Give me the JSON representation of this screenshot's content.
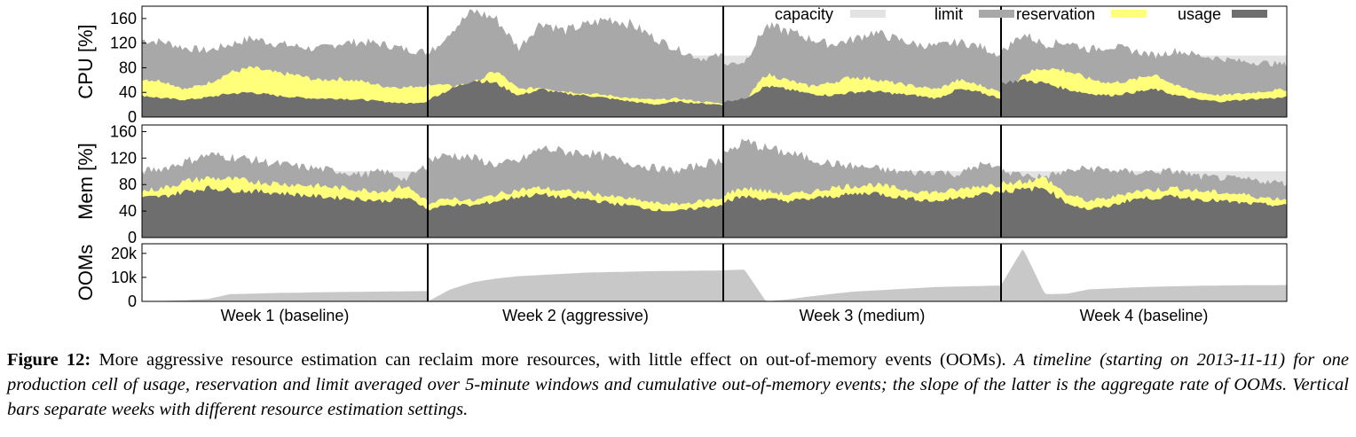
{
  "chart_data": [
    {
      "type": "area",
      "ylabel": "CPU [%]",
      "yticks": [
        0,
        40,
        80,
        120,
        160
      ],
      "ylim": [
        0,
        180
      ],
      "legend": {
        "placement": "top",
        "entries": [
          {
            "name": "capacity",
            "color": "#e3e3e3"
          },
          {
            "name": "limit",
            "color": "#a8a8a8"
          },
          {
            "name": "reservation",
            "color": "#ffff7a"
          },
          {
            "name": "usage",
            "color": "#6e6e6e"
          }
        ]
      },
      "series": [
        {
          "name": "capacity",
          "values": [
            100,
            100,
            100,
            100,
            100,
            100,
            100,
            100,
            100,
            100,
            100,
            100,
            100,
            100,
            100,
            100,
            100,
            100,
            100,
            100,
            100,
            100,
            100,
            100,
            100,
            100,
            100,
            100,
            100,
            100,
            100,
            100,
            100,
            100,
            100,
            100,
            100,
            100,
            100,
            100,
            100,
            100,
            100,
            100,
            100,
            100,
            100,
            100,
            100,
            100,
            100,
            100,
            100,
            100,
            100,
            100
          ]
        },
        {
          "name": "limit",
          "values": [
            125,
            122,
            112,
            108,
            118,
            128,
            120,
            115,
            110,
            120,
            122,
            118,
            110,
            105,
            100,
            140,
            172,
            160,
            112,
            155,
            140,
            150,
            160,
            150,
            128,
            110,
            95,
            100,
            85,
            90,
            148,
            140,
            128,
            118,
            125,
            138,
            128,
            118,
            115,
            122,
            115,
            100,
            105,
            135,
            118,
            122,
            110,
            115,
            108,
            100,
            108,
            100,
            95,
            90,
            88,
            85
          ]
        },
        {
          "name": "reservation",
          "values": [
            62,
            58,
            45,
            55,
            72,
            80,
            72,
            68,
            60,
            62,
            58,
            50,
            48,
            52,
            55,
            50,
            55,
            75,
            45,
            48,
            42,
            38,
            35,
            30,
            28,
            30,
            25,
            22,
            20,
            25,
            70,
            60,
            50,
            55,
            65,
            62,
            55,
            50,
            45,
            60,
            52,
            40,
            30,
            70,
            80,
            75,
            62,
            55,
            60,
            70,
            50,
            40,
            35,
            38,
            42,
            45
          ]
        },
        {
          "name": "usage",
          "values": [
            35,
            30,
            28,
            32,
            38,
            40,
            35,
            32,
            30,
            30,
            28,
            25,
            22,
            25,
            28,
            45,
            60,
            55,
            35,
            45,
            38,
            35,
            30,
            25,
            20,
            25,
            22,
            20,
            25,
            30,
            50,
            45,
            38,
            35,
            40,
            42,
            38,
            35,
            30,
            45,
            40,
            30,
            55,
            60,
            55,
            45,
            38,
            35,
            40,
            45,
            35,
            28,
            25,
            28,
            30,
            32
          ]
        }
      ]
    },
    {
      "type": "area",
      "ylabel": "Mem [%]",
      "yticks": [
        0,
        40,
        80,
        120,
        160
      ],
      "ylim": [
        0,
        170
      ],
      "series": [
        {
          "name": "capacity",
          "values": [
            100,
            100,
            100,
            100,
            100,
            100,
            100,
            100,
            100,
            100,
            100,
            100,
            100,
            100,
            100,
            100,
            100,
            100,
            100,
            100,
            100,
            100,
            100,
            100,
            100,
            100,
            100,
            100,
            100,
            100,
            100,
            100,
            100,
            100,
            100,
            100,
            100,
            100,
            100,
            100,
            100,
            100,
            100,
            100,
            100,
            100,
            100,
            100,
            100,
            100,
            100,
            100,
            100,
            100,
            100,
            100
          ]
        },
        {
          "name": "limit",
          "values": [
            100,
            105,
            115,
            125,
            122,
            118,
            112,
            108,
            104,
            100,
            95,
            100,
            88,
            110,
            118,
            125,
            120,
            110,
            115,
            135,
            130,
            128,
            120,
            112,
            105,
            100,
            110,
            118,
            125,
            145,
            135,
            128,
            120,
            112,
            108,
            105,
            100,
            98,
            100,
            95,
            110,
            105,
            100,
            95,
            92,
            100,
            105,
            102,
            98,
            100,
            100,
            92,
            90,
            88,
            85,
            82
          ]
        },
        {
          "name": "reservation",
          "values": [
            70,
            75,
            85,
            90,
            88,
            85,
            82,
            80,
            78,
            75,
            72,
            70,
            78,
            55,
            50,
            60,
            55,
            65,
            72,
            75,
            70,
            68,
            62,
            58,
            52,
            50,
            55,
            60,
            65,
            75,
            70,
            65,
            68,
            75,
            78,
            80,
            75,
            70,
            68,
            72,
            78,
            80,
            82,
            85,
            90,
            65,
            55,
            60,
            70,
            72,
            75,
            70,
            68,
            65,
            60,
            58
          ]
        },
        {
          "name": "usage",
          "values": [
            60,
            62,
            70,
            75,
            72,
            70,
            68,
            65,
            62,
            60,
            58,
            55,
            60,
            45,
            42,
            50,
            48,
            55,
            62,
            65,
            60,
            58,
            52,
            48,
            42,
            40,
            45,
            50,
            55,
            62,
            58,
            55,
            58,
            62,
            65,
            68,
            62,
            58,
            55,
            60,
            65,
            68,
            70,
            72,
            75,
            52,
            42,
            48,
            58,
            60,
            62,
            58,
            55,
            52,
            50,
            48
          ]
        }
      ]
    },
    {
      "type": "area",
      "ylabel": "OOMs",
      "yticks_labels": [
        "0",
        "10k",
        "20k"
      ],
      "yticks": [
        0,
        10000,
        20000
      ],
      "ylim": [
        0,
        24000
      ],
      "series": [
        {
          "name": "OOMs",
          "values": [
            0,
            200,
            500,
            1000,
            3000,
            3200,
            3500,
            3600,
            3800,
            3900,
            4000,
            4100,
            4200,
            4300,
            0,
            5000,
            8000,
            9500,
            10500,
            11000,
            11500,
            12000,
            12200,
            12400,
            12600,
            12700,
            12800,
            12900,
            13000,
            13200,
            0,
            800,
            2000,
            3000,
            4000,
            4500,
            5000,
            5500,
            6000,
            6200,
            6400,
            6600,
            6800,
            22000,
            3000,
            3200,
            5000,
            5400,
            5800,
            6100,
            6300,
            6500,
            6600,
            6700,
            6750,
            6800
          ]
        }
      ]
    }
  ],
  "weeks": [
    "Week 1 (baseline)",
    "Week 2 (aggressive)",
    "Week 3 (medium)",
    "Week 4 (baseline)"
  ],
  "caption": {
    "label": "Figure 12:",
    "text": " More aggressive resource estimation can reclaim more resources, with little effect on out-of-memory events (OOMs).",
    "italic": " A timeline (starting on 2013-11-11) for one production cell of usage, reservation and limit averaged over 5-minute windows and cumulative out-of-memory events; the slope of the latter is the aggregate rate of OOMs. Vertical bars separate weeks with different resource estimation settings."
  }
}
